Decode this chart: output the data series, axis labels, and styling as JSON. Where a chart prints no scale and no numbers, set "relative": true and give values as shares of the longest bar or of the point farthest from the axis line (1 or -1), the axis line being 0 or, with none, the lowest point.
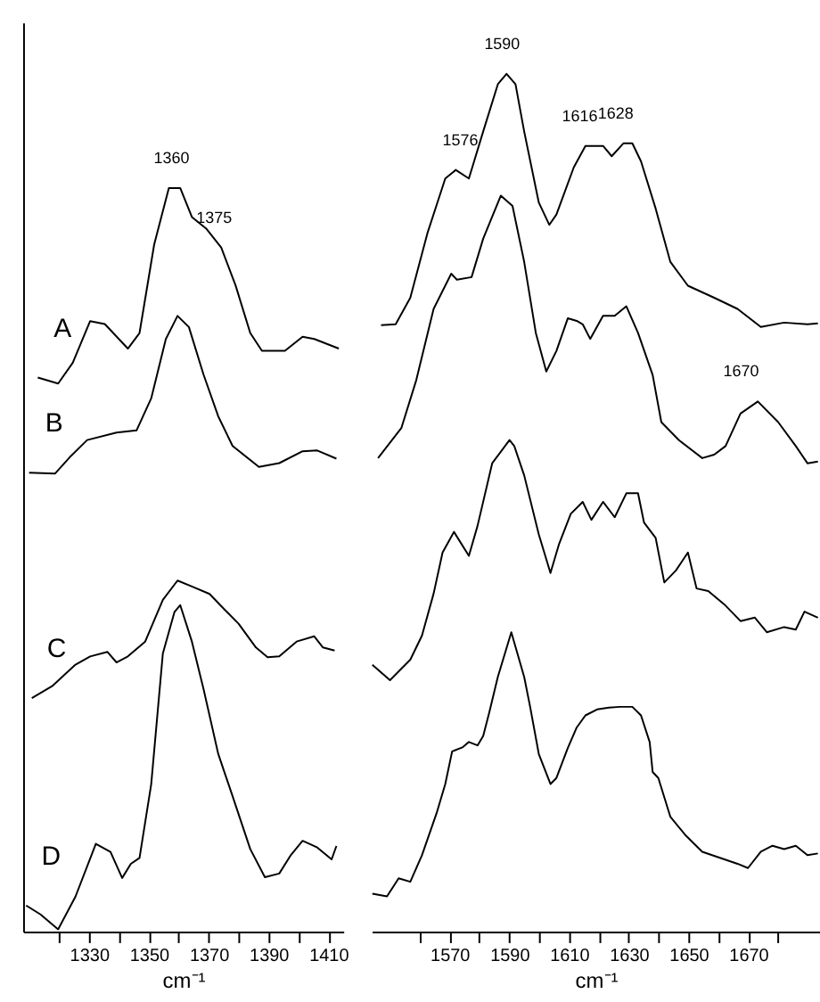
{
  "chart_data": [
    {
      "type": "line",
      "relative": true,
      "xlabel": "cm⁻¹",
      "xlim": [
        1308,
        1415
      ],
      "xticks": [
        {
          "value": 1320,
          "label": null
        },
        1330,
        {
          "value": 1340,
          "label": null
        },
        1350,
        {
          "value": 1360,
          "label": null
        },
        1370,
        {
          "value": 1380,
          "label": null
        },
        1390,
        {
          "value": 1400,
          "label": null
        },
        1410
      ],
      "tick_labels": "x",
      "grid": false,
      "legend": false,
      "line_style": "solid",
      "series": [
        {
          "name": "A",
          "color": "#000000",
          "x": [
            1312.9,
            1319.7,
            1324.6,
            1330.4,
            1335.3,
            1343.0,
            1346.9,
            1351.8,
            1356.7,
            1360.5,
            1364.4,
            1369.3,
            1374.2,
            1379.0,
            1383.9,
            1387.8,
            1395.5,
            1401.4,
            1405.3,
            1413.5
          ],
          "values": [
            0.745,
            0.737,
            0.765,
            0.821,
            0.817,
            0.784,
            0.805,
            0.924,
            1.0,
            1.0,
            0.961,
            0.945,
            0.92,
            0.869,
            0.805,
            0.781,
            0.781,
            0.8,
            0.797,
            0.784
          ]
        },
        {
          "name": "B",
          "color": "#000000",
          "x": [
            1310.0,
            1318.7,
            1323.6,
            1329.4,
            1339.2,
            1345.9,
            1350.8,
            1355.7,
            1359.6,
            1363.4,
            1368.3,
            1373.2,
            1378.0,
            1386.8,
            1393.6,
            1401.4,
            1406.3,
            1412.7
          ],
          "values": [
            0.617,
            0.616,
            0.638,
            0.661,
            0.671,
            0.674,
            0.717,
            0.797,
            0.828,
            0.813,
            0.749,
            0.693,
            0.653,
            0.625,
            0.63,
            0.646,
            0.647,
            0.636
          ]
        },
        {
          "name": "C",
          "color": "#000000",
          "x": [
            1310.9,
            1317.7,
            1325.5,
            1330.4,
            1336.2,
            1339.2,
            1343.0,
            1348.8,
            1354.7,
            1359.6,
            1364.4,
            1370.3,
            1375.1,
            1380.0,
            1385.8,
            1389.7,
            1393.6,
            1399.4,
            1405.3,
            1408.2,
            1412.1
          ],
          "values": [
            0.314,
            0.33,
            0.359,
            0.37,
            0.376,
            0.362,
            0.37,
            0.39,
            0.446,
            0.472,
            0.464,
            0.454,
            0.434,
            0.414,
            0.382,
            0.369,
            0.37,
            0.39,
            0.397,
            0.382,
            0.378
          ]
        },
        {
          "name": "D",
          "color": "#000000",
          "x": [
            1309.0,
            1313.8,
            1319.7,
            1325.5,
            1332.3,
            1337.2,
            1341.1,
            1344.0,
            1346.9,
            1350.8,
            1354.7,
            1358.6,
            1360.5,
            1364.4,
            1368.3,
            1373.2,
            1378.0,
            1383.9,
            1388.8,
            1393.6,
            1397.5,
            1401.4,
            1406.3,
            1411.1,
            1412.7
          ],
          "values": [
            0.035,
            0.023,
            0.003,
            0.047,
            0.118,
            0.107,
            0.072,
            0.091,
            0.099,
            0.198,
            0.374,
            0.43,
            0.439,
            0.39,
            0.326,
            0.239,
            0.182,
            0.111,
            0.073,
            0.078,
            0.103,
            0.122,
            0.113,
            0.097,
            0.115
          ]
        }
      ],
      "annotations": [
        {
          "text": "1360",
          "x": 1360,
          "y": 1.0
        },
        {
          "text": "1375",
          "x": 1374.2,
          "y": 0.92
        }
      ]
    },
    {
      "type": "line",
      "relative": true,
      "xlabel": "cm⁻¹",
      "xlim": [
        1544,
        1694
      ],
      "xticks": [
        {
          "value": 1560,
          "label": null
        },
        1570,
        {
          "value": 1580,
          "label": null
        },
        1590,
        {
          "value": 1600,
          "label": null
        },
        1610,
        {
          "value": 1620,
          "label": null
        },
        1630,
        {
          "value": 1640,
          "label": null
        },
        1650,
        {
          "value": 1660,
          "label": null
        },
        1670,
        {
          "value": 1680,
          "label": null
        }
      ],
      "tick_labels": "x",
      "grid": false,
      "legend": false,
      "line_style": "solid",
      "series": [
        {
          "color": "#000000",
          "x": [
            1547.1,
            1552.0,
            1556.9,
            1562.7,
            1568.6,
            1572.1,
            1576.5,
            1581.3,
            1586.2,
            1589.1,
            1592.1,
            1595.0,
            1599.9,
            1603.4,
            1605.8,
            1611.6,
            1615.5,
            1621.4,
            1624.3,
            1628.2,
            1631.2,
            1634.1,
            1639.0,
            1643.9,
            1649.8,
            1658.6,
            1666.4,
            1674.2,
            1682.0,
            1689.8,
            1693.3
          ],
          "values": [
            0.707,
            0.708,
            0.739,
            0.815,
            0.878,
            0.888,
            0.878,
            0.933,
            0.988,
            1.0,
            0.988,
            0.933,
            0.85,
            0.824,
            0.836,
            0.891,
            0.916,
            0.916,
            0.904,
            0.919,
            0.919,
            0.898,
            0.843,
            0.781,
            0.753,
            0.739,
            0.726,
            0.705,
            0.71,
            0.708,
            0.709
          ]
        },
        {
          "color": "#000000",
          "x": [
            1546.1,
            1553.9,
            1558.9,
            1564.7,
            1570.6,
            1572.5,
            1577.4,
            1581.3,
            1587.2,
            1591.1,
            1595.0,
            1598.9,
            1602.4,
            1605.8,
            1609.6,
            1612.6,
            1614.6,
            1617.1,
            1621.4,
            1625.3,
            1629.2,
            1633.1,
            1638.0,
            1640.9,
            1646.8,
            1654.6,
            1658.6,
            1662.4,
            1667.4,
            1673.2,
            1680.0,
            1685.9,
            1689.8,
            1693.3
          ],
          "values": [
            0.552,
            0.587,
            0.643,
            0.726,
            0.767,
            0.76,
            0.763,
            0.808,
            0.858,
            0.846,
            0.781,
            0.698,
            0.653,
            0.677,
            0.715,
            0.712,
            0.708,
            0.691,
            0.718,
            0.718,
            0.729,
            0.698,
            0.649,
            0.594,
            0.573,
            0.552,
            0.556,
            0.566,
            0.604,
            0.618,
            0.594,
            0.566,
            0.546,
            0.548
          ]
        },
        {
          "color": "#000000",
          "x": [
            1544.2,
            1550.1,
            1556.9,
            1560.8,
            1564.7,
            1567.7,
            1571.5,
            1576.5,
            1579.4,
            1584.3,
            1590.1,
            1591.7,
            1595.0,
            1599.9,
            1603.8,
            1606.7,
            1610.6,
            1614.6,
            1617.5,
            1621.4,
            1625.3,
            1629.2,
            1633.1,
            1635.1,
            1639.0,
            1641.9,
            1645.8,
            1649.8,
            1652.7,
            1656.6,
            1662.4,
            1667.4,
            1672.2,
            1676.2,
            1682.0,
            1685.9,
            1688.8,
            1693.3
          ],
          "values": [
            0.311,
            0.293,
            0.317,
            0.345,
            0.394,
            0.442,
            0.466,
            0.438,
            0.473,
            0.546,
            0.573,
            0.566,
            0.532,
            0.463,
            0.418,
            0.452,
            0.487,
            0.501,
            0.48,
            0.501,
            0.483,
            0.511,
            0.511,
            0.477,
            0.459,
            0.407,
            0.421,
            0.442,
            0.4,
            0.397,
            0.38,
            0.362,
            0.366,
            0.349,
            0.355,
            0.352,
            0.373,
            0.366
          ]
        },
        {
          "color": "#000000",
          "x": [
            1544.2,
            1549.1,
            1553.0,
            1556.9,
            1560.8,
            1565.7,
            1568.6,
            1570.9,
            1574.5,
            1576.5,
            1579.4,
            1581.3,
            1583.3,
            1586.2,
            1590.7,
            1595.0,
            1597.0,
            1599.9,
            1603.8,
            1605.8,
            1609.6,
            1612.6,
            1615.5,
            1619.4,
            1623.4,
            1627.2,
            1631.2,
            1634.1,
            1637.0,
            1638.0,
            1639.9,
            1643.9,
            1648.8,
            1654.6,
            1660.5,
            1666.4,
            1669.9,
            1674.2,
            1678.1,
            1682.0,
            1685.9,
            1689.8,
            1693.3
          ],
          "values": [
            0.044,
            0.041,
            0.062,
            0.058,
            0.089,
            0.138,
            0.172,
            0.21,
            0.215,
            0.221,
            0.217,
            0.228,
            0.255,
            0.297,
            0.349,
            0.297,
            0.262,
            0.207,
            0.172,
            0.179,
            0.214,
            0.238,
            0.252,
            0.259,
            0.261,
            0.262,
            0.262,
            0.252,
            0.221,
            0.186,
            0.179,
            0.134,
            0.113,
            0.093,
            0.086,
            0.079,
            0.074,
            0.093,
            0.1,
            0.096,
            0.1,
            0.089,
            0.091
          ]
        }
      ],
      "annotations": [
        {
          "text": "1576",
          "x": 1576,
          "y": 0.888
        },
        {
          "text": "1590",
          "x": 1590,
          "y": 1.0
        },
        {
          "text": "1616",
          "x": 1616,
          "y": 0.916
        },
        {
          "text": "1628",
          "x": 1628,
          "y": 0.919
        },
        {
          "text": "1670",
          "x": 1670,
          "y": 0.618
        }
      ]
    }
  ]
}
